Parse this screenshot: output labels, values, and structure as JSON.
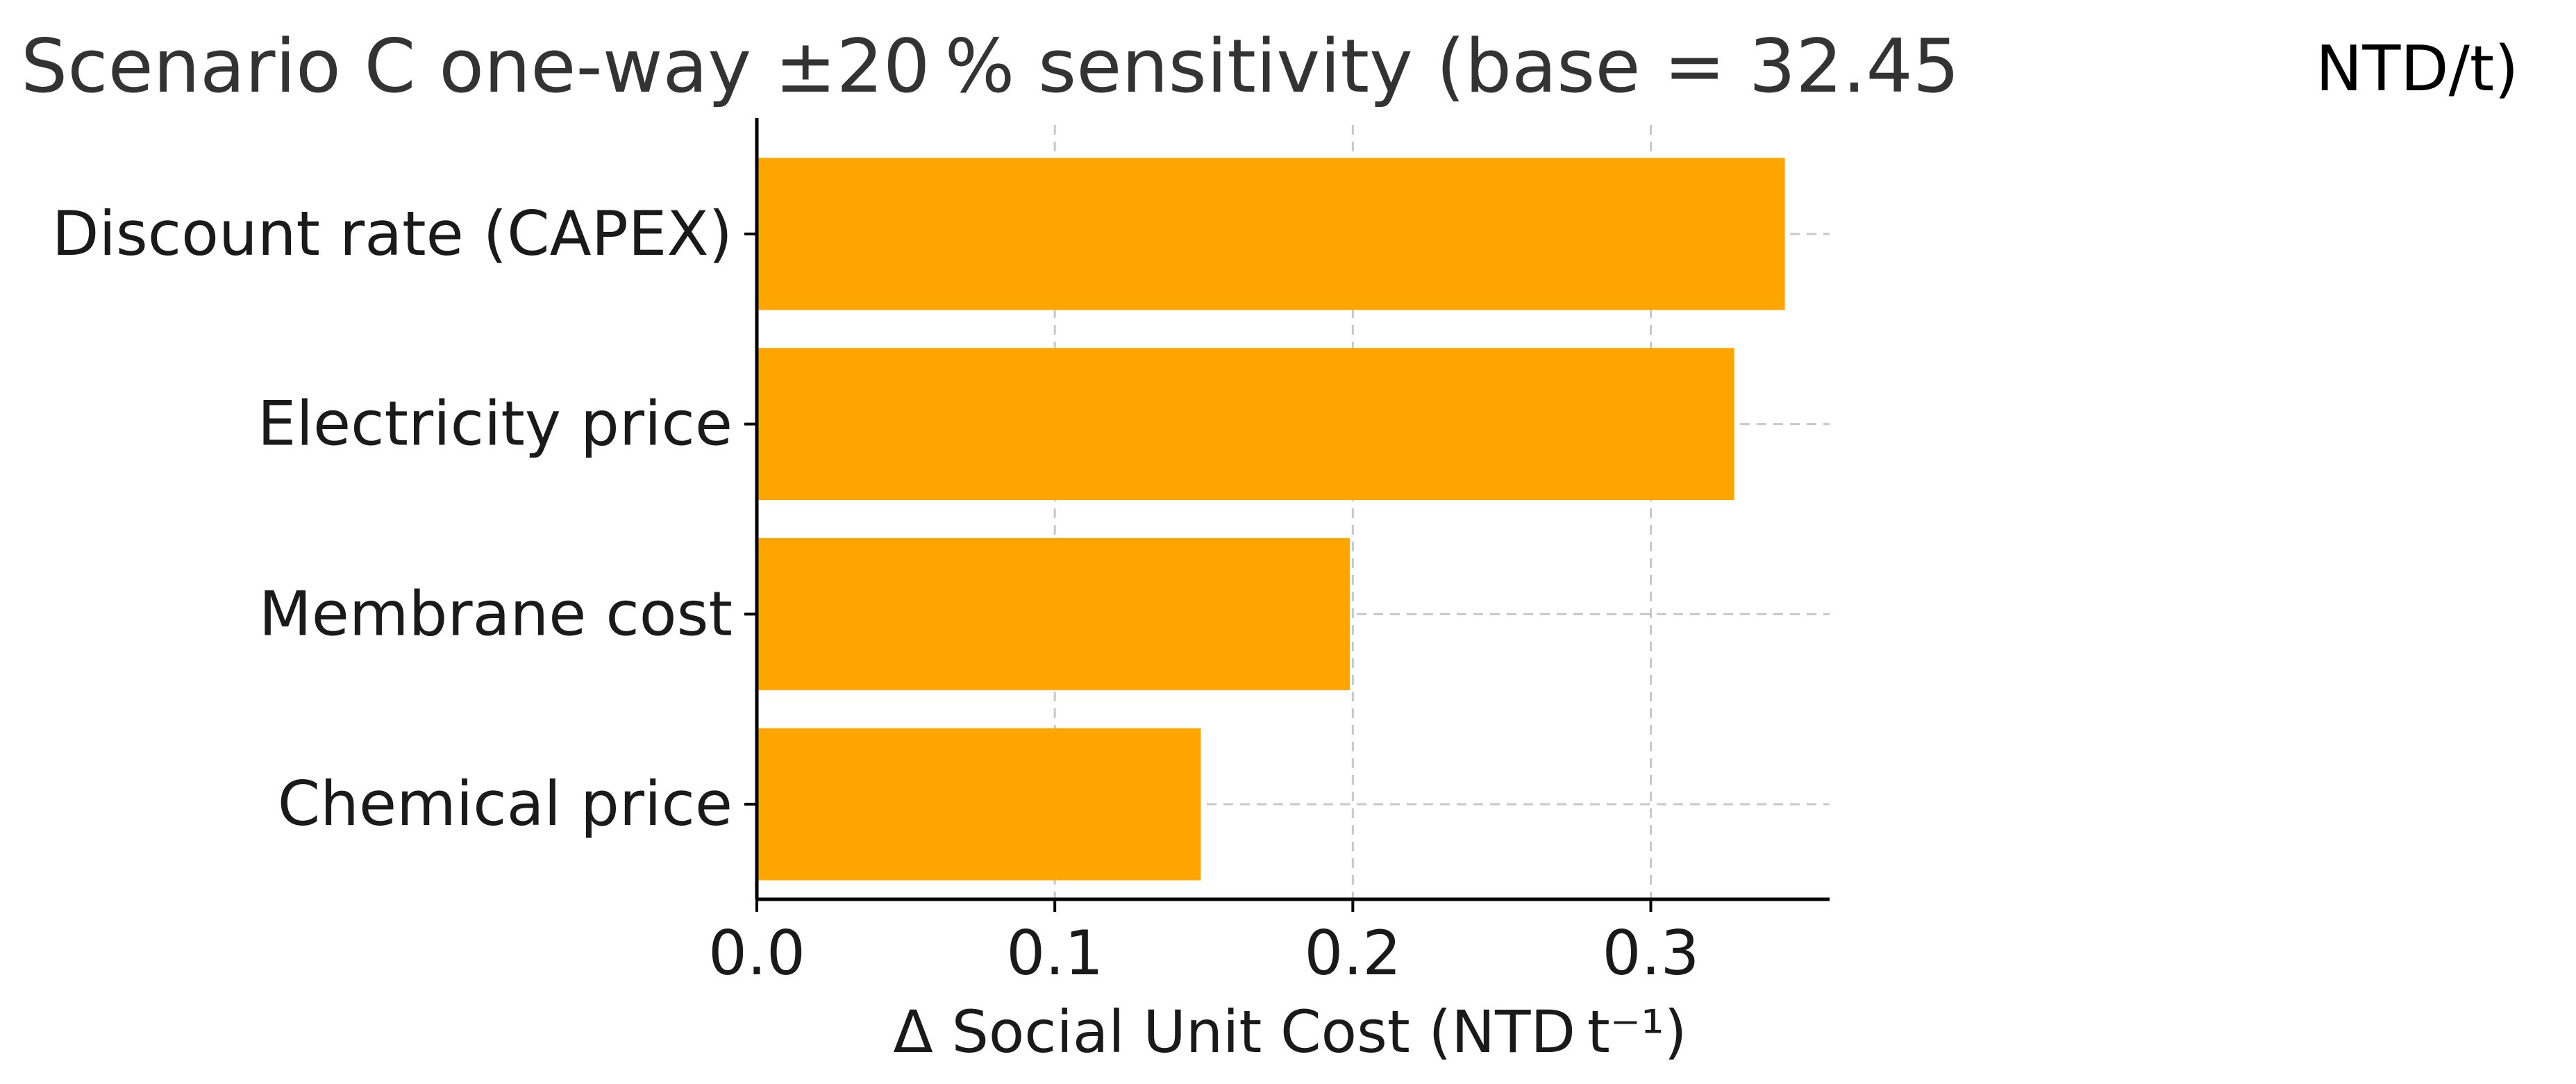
{
  "chart_data": {
    "type": "bar",
    "orientation": "horizontal",
    "title": "Scenario C one-way ±20 % sensitivity (base = 32.45",
    "title_unit": "NTD/t)",
    "xlabel": "Δ Social Unit Cost (NTD t⁻¹)",
    "ylabel": "",
    "categories": [
      "Discount rate (CAPEX)",
      "Electricity price",
      "Membrane cost",
      "Chemical price"
    ],
    "values": [
      0.345,
      0.328,
      0.199,
      0.149
    ],
    "xlim": [
      0,
      0.36
    ],
    "xticks": [
      0.0,
      0.1,
      0.2,
      0.3
    ],
    "xtick_labels": [
      "0.0",
      "0.1",
      "0.2",
      "0.3"
    ],
    "grid": true,
    "bar_color": "#FFA500"
  }
}
